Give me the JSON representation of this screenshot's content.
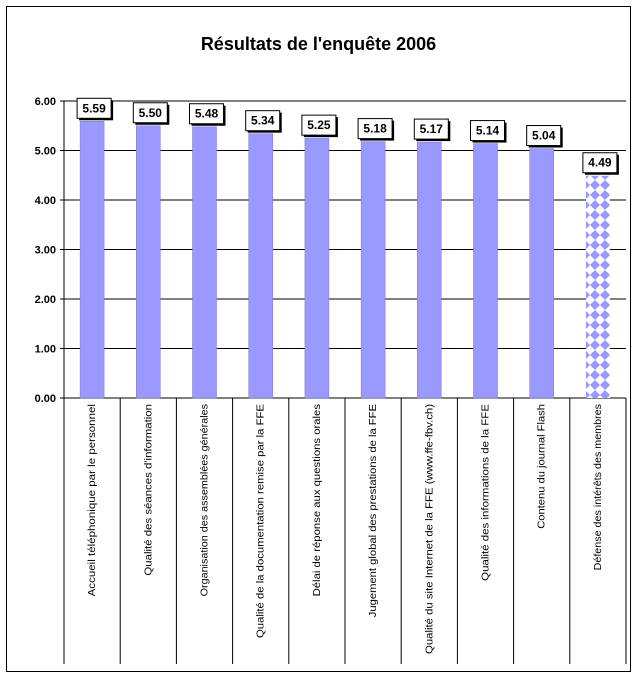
{
  "chart_data": {
    "type": "bar",
    "title": "Résultats de l'enquête 2006",
    "xlabel": "",
    "ylabel": "",
    "ylim": [
      0,
      6
    ],
    "yticks": [
      "0.00",
      "1.00",
      "2.00",
      "3.00",
      "4.00",
      "5.00",
      "6.00"
    ],
    "grid": true,
    "legend": "none",
    "categories": [
      "Accueil téléphonique par le personnel",
      "Qualité des séances d'information",
      "Organisation des assemblées générales",
      "Qualité de la documentation remise par la FFE",
      "Délai de réponse aux questions orales",
      "Jugement global des prestations de la FFE",
      "Qualité du site Internet de la FFE (www.ffe-fbv.ch)",
      "Qualité des informations de la FFE",
      "Contenu du journal Flash",
      "Défense des intérêts des membres"
    ],
    "values": [
      5.59,
      5.5,
      5.48,
      5.34,
      5.25,
      5.18,
      5.17,
      5.14,
      5.04,
      4.49
    ],
    "value_labels": [
      "5.59",
      "5.50",
      "5.48",
      "5.34",
      "5.25",
      "5.18",
      "5.17",
      "5.14",
      "5.04",
      "4.49"
    ],
    "colors": {
      "bar": "#9999FF",
      "bar_pattern_dark": "#9999FF",
      "bar_pattern_light": "#FFFFFF",
      "grid": "#000000"
    },
    "patterned_bars": [
      9
    ]
  }
}
